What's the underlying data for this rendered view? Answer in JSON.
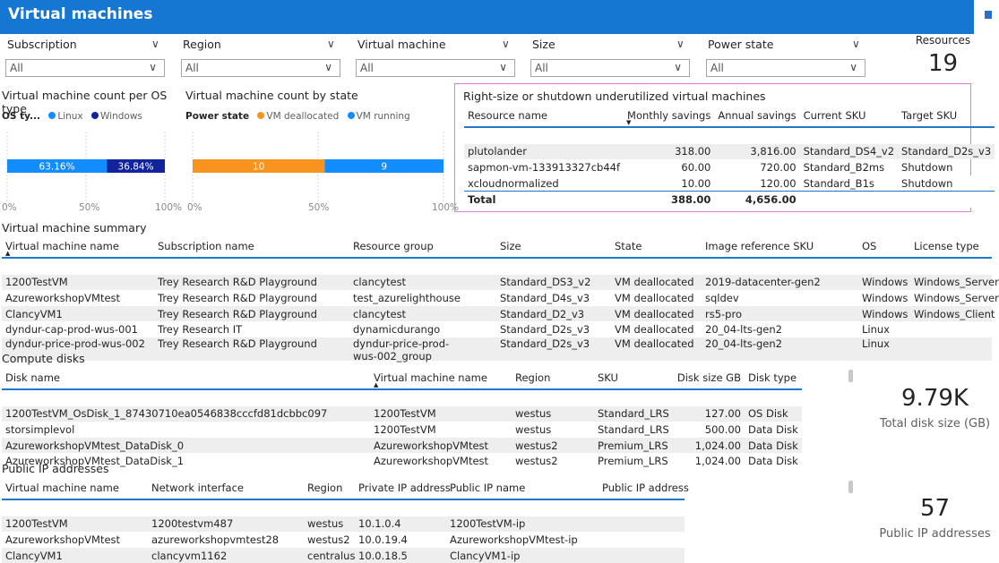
{
  "header": {
    "title": "Virtual machines"
  },
  "slicers": [
    {
      "label": "Subscription",
      "value": "All"
    },
    {
      "label": "Region",
      "value": "All"
    },
    {
      "label": "Virtual machine",
      "value": "All"
    },
    {
      "label": "Size",
      "value": "All"
    },
    {
      "label": "Power state",
      "value": "All"
    }
  ],
  "resources_card": {
    "label": "Resources",
    "value": "19"
  },
  "os_chart": {
    "title": "Virtual machine count per OS type",
    "legend_title": "OS ty...",
    "ticks": [
      "0%",
      "50%",
      "100%"
    ]
  },
  "state_chart": {
    "title": "Virtual machine count by state",
    "legend_title": "Power state",
    "ticks": [
      "0%",
      "50%",
      "100%"
    ]
  },
  "chart_data": [
    {
      "type": "bar",
      "orientation": "horizontal",
      "stacked": "100%",
      "title": "Virtual machine count per OS type",
      "legend_title": "OS ty...",
      "series": [
        {
          "name": "Linux",
          "values": [
            63.16
          ],
          "label": "63.16%",
          "color": "#118dff"
        },
        {
          "name": "Windows",
          "values": [
            36.84
          ],
          "label": "36.84%",
          "color": "#12239e"
        }
      ],
      "xlim": [
        0,
        100
      ]
    },
    {
      "type": "bar",
      "orientation": "horizontal",
      "stacked": "100%",
      "title": "Virtual machine count by state",
      "legend_title": "Power state",
      "series": [
        {
          "name": "VM deallocated",
          "values": [
            10
          ],
          "label": "10",
          "color": "#f7931e"
        },
        {
          "name": "VM running",
          "values": [
            9
          ],
          "label": "9",
          "color": "#118dff"
        }
      ],
      "xlim": [
        0,
        100
      ]
    }
  ],
  "rightsize": {
    "title": "Right-size or shutdown underutilized virtual machines",
    "columns": [
      "Resource name",
      "Monthly savings",
      "Annual savings",
      "Current SKU",
      "Target SKU"
    ],
    "rows": [
      [
        "plutolander",
        "318.00",
        "3,816.00",
        "Standard_DS4_v2",
        "Standard_D2s_v3"
      ],
      [
        "sapmon-vm-133913327cb44f",
        "60.00",
        "720.00",
        "Standard_B2ms",
        "Shutdown"
      ],
      [
        "xcloudnormalized",
        "10.00",
        "120.00",
        "Standard_B1s",
        "Shutdown"
      ]
    ],
    "total": [
      "Total",
      "388.00",
      "4,656.00",
      "",
      ""
    ]
  },
  "vm_summary": {
    "title": "Virtual machine summary",
    "columns": [
      "Virtual machine name",
      "Subscription name",
      "Resource group",
      "Size",
      "State",
      "Image reference SKU",
      "OS",
      "License type"
    ],
    "rows": [
      [
        "1200TestVM",
        "Trey Research R&D Playground",
        "clancytest",
        "Standard_DS3_v2",
        "VM deallocated",
        "2019-datacenter-gen2",
        "Windows",
        "Windows_Server"
      ],
      [
        "AzureworkshopVMtest",
        "Trey Research R&D Playground",
        "test_azurelighthouse",
        "Standard_D4s_v3",
        "VM deallocated",
        "sqldev",
        "Windows",
        "Windows_Server"
      ],
      [
        "ClancyVM1",
        "Trey Research R&D Playground",
        "clancytest",
        "Standard_D2_v3",
        "VM deallocated",
        "rs5-pro",
        "Windows",
        "Windows_Client"
      ],
      [
        "dyndur-cap-prod-wus-001",
        "Trey Research IT",
        "dynamicdurango",
        "Standard_D2s_v3",
        "VM deallocated",
        "20_04-lts-gen2",
        "Linux",
        ""
      ],
      [
        "dyndur-price-prod-wus-002",
        "Trey Research R&D Playground",
        "dyndur-price-prod-wus-002_group",
        "Standard_D2s_v3",
        "VM deallocated",
        "20_04-lts-gen2",
        "Linux",
        ""
      ]
    ]
  },
  "disks": {
    "title": "Compute disks",
    "columns": [
      "Disk name",
      "Virtual machine name",
      "Region",
      "SKU",
      "Disk size GB",
      "Disk type"
    ],
    "rows": [
      [
        "1200TestVM_OsDisk_1_87430710ea0546838cccfd81dcbbc097",
        "1200TestVM",
        "westus",
        "Standard_LRS",
        "127.00",
        "OS Disk"
      ],
      [
        "storsimplevol",
        "1200TestVM",
        "westus",
        "Standard_LRS",
        "500.00",
        "Data Disk"
      ],
      [
        "AzureworkshopVMtest_DataDisk_0",
        "AzureworkshopVMtest",
        "westus2",
        "Premium_LRS",
        "1,024.00",
        "Data Disk"
      ],
      [
        "AzureworkshopVMtest_DataDisk_1",
        "AzureworkshopVMtest",
        "westus2",
        "Premium_LRS",
        "1,024.00",
        "Data Disk"
      ]
    ],
    "card": {
      "value": "9.79K",
      "label": "Total disk size (GB)"
    }
  },
  "ips": {
    "title": "Public IP addresses",
    "columns": [
      "Virtual machine name",
      "Network interface",
      "Region",
      "Private IP address",
      "Public IP name",
      "Public IP address"
    ],
    "rows": [
      [
        "1200TestVM",
        "1200testvm487",
        "westus",
        "10.1.0.4",
        "1200TestVM-ip",
        ""
      ],
      [
        "AzureworkshopVMtest",
        "azureworkshopvmtest28",
        "westus2",
        "10.0.19.4",
        "AzureworkshopVMtest-ip",
        ""
      ],
      [
        "ClancyVM1",
        "clancyvm1162",
        "centralus",
        "10.0.18.5",
        "ClancyVM1-ip",
        ""
      ]
    ],
    "card": {
      "value": "57",
      "label": "Public IP addresses"
    }
  }
}
